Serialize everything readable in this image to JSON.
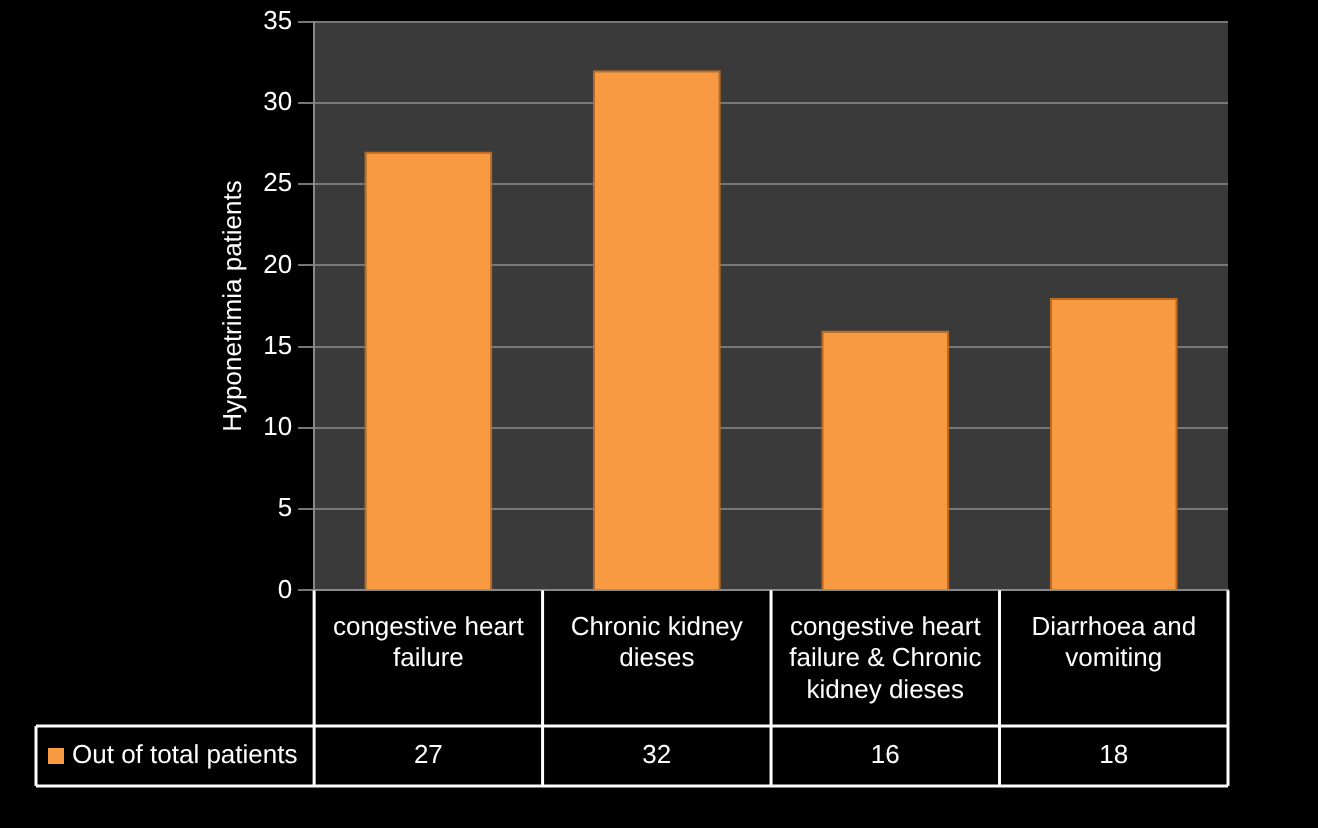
{
  "chart_data": {
    "type": "bar",
    "ylabel": "Hyponetrimia patients",
    "categories": [
      "congestive heart failure",
      "Chronic kidney dieses",
      "congestive heart failure & Chronic kidney dieses",
      "Diarrhoea and vomiting"
    ],
    "series": [
      {
        "name": "Out of total patients",
        "color": "#f79a42",
        "values": [
          27,
          32,
          16,
          18
        ]
      }
    ],
    "ylim": [
      0,
      35
    ],
    "yticks": [
      0,
      5,
      10,
      15,
      20,
      25,
      30,
      35
    ],
    "grid": "y",
    "legend": "bottom",
    "data_labels": true
  }
}
